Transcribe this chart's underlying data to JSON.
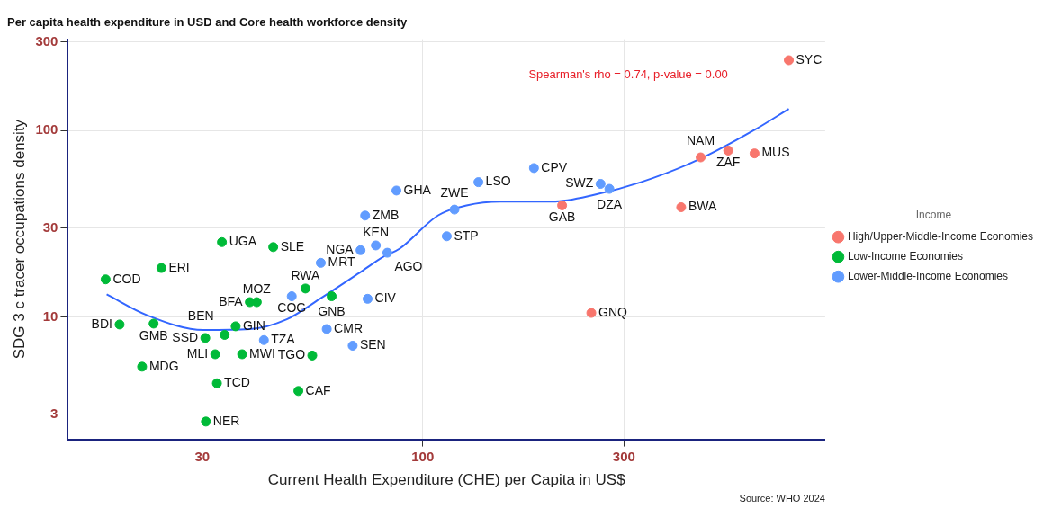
{
  "chart_data": {
    "type": "scatter",
    "title": "Per capita health expenditure in USD and Core health workforce density",
    "xlabel": "Current Health Expenditure (CHE) per Capita in US$",
    "ylabel": "SDG 3 c tracer occupations density",
    "legend_title": "Income",
    "log": "xy",
    "grid": true,
    "legend": "right",
    "marker": "circle",
    "xlim": [
      14.4,
      900
    ],
    "ylim": [
      2.2,
      310
    ],
    "xticks": [
      30,
      100,
      300
    ],
    "yticks": [
      3,
      10,
      30,
      100,
      300
    ],
    "annotations": [
      "Spearman's rho = 0.74, p-value = 0.00",
      "Source: WHO 2024"
    ],
    "series": [
      {
        "name": "High/Upper-Middle-Income Economies",
        "color": "#f8766d",
        "x": [
          214,
          251,
          738,
          456,
          530,
          612,
          410
        ],
        "values": [
          39.7,
          10.5,
          239,
          71.9,
          78.2,
          75.5,
          38.8
        ],
        "value_labels": [
          "GAB",
          "GNQ",
          "SYC",
          "NAM",
          "ZAF",
          "MUS",
          "BWA"
        ]
      },
      {
        "name": "Low-Income Economies",
        "color": "#00ba38",
        "x": [
          17.7,
          24.0,
          33.4,
          44.2,
          19.1,
          23.0,
          30.5,
          33.9,
          36.0,
          32.2,
          37.3,
          40.4,
          38.9,
          52.7,
          54.7,
          21.6,
          32.5,
          50.7,
          30.6,
          60.8
        ],
        "values": [
          15.9,
          18.3,
          25.2,
          23.7,
          9.1,
          9.2,
          7.7,
          8.0,
          8.9,
          6.3,
          6.3,
          12.0,
          12.0,
          14.2,
          6.2,
          5.4,
          4.4,
          4.0,
          2.74,
          12.9
        ],
        "value_labels": [
          "COD",
          "ERI",
          "UGA",
          "SLE",
          "BDI",
          "GMB",
          "SSD",
          "BEN",
          "GIN",
          "MLI",
          "MWI",
          "MOZ",
          "BFA",
          "RWA",
          "TGO",
          "MDG",
          "TCD",
          "CAF",
          "NER",
          "GNB"
        ]
      },
      {
        "name": "Lower-Middle-Income Economies",
        "color": "#619cff",
        "x": [
          57.3,
          42.0,
          48.9,
          59.2,
          68.2,
          74.0,
          86.6,
          73.0,
          77.4,
          71.2,
          82.4,
          135.5,
          183.5,
          118.9,
          114.0,
          264,
          277
        ],
        "values": [
          19.5,
          7.5,
          12.9,
          8.6,
          7.0,
          12.5,
          47.7,
          35.0,
          24.2,
          22.8,
          22.1,
          52.9,
          63.0,
          37.7,
          27.1,
          51.8,
          48.7
        ],
        "value_labels": [
          "MRT",
          "TZA",
          "COG",
          "CMR",
          "SEN",
          "CIV",
          "GHA",
          "ZMB",
          "KEN",
          "NGA",
          "AGO",
          "LSO",
          "CPV",
          "ZWE",
          "STP",
          "SWZ",
          "DZA"
        ]
      },
      {
        "type": "line",
        "marker": "none",
        "color": "#3366ff",
        "x": [
          17.8,
          22.2,
          30.2,
          38.9,
          47.6,
          57.0,
          71.7,
          80.6,
          88.0,
          108.8,
          127,
          153,
          203,
          256,
          329,
          450,
          612,
          738
        ],
        "values": [
          13.2,
          10.2,
          8.5,
          8.6,
          9.7,
          12.5,
          17.6,
          21.0,
          23.2,
          35.1,
          39.7,
          41.6,
          41.6,
          45.3,
          52.9,
          69.8,
          101,
          131
        ]
      }
    ]
  }
}
